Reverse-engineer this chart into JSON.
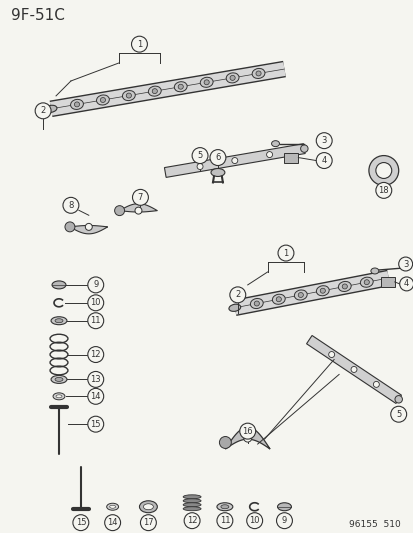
{
  "title": "9F-51C",
  "footer": "96155  510",
  "bg": "#f5f5f0",
  "lc": "#333333",
  "fig_width": 4.14,
  "fig_height": 5.33,
  "dpi": 100
}
